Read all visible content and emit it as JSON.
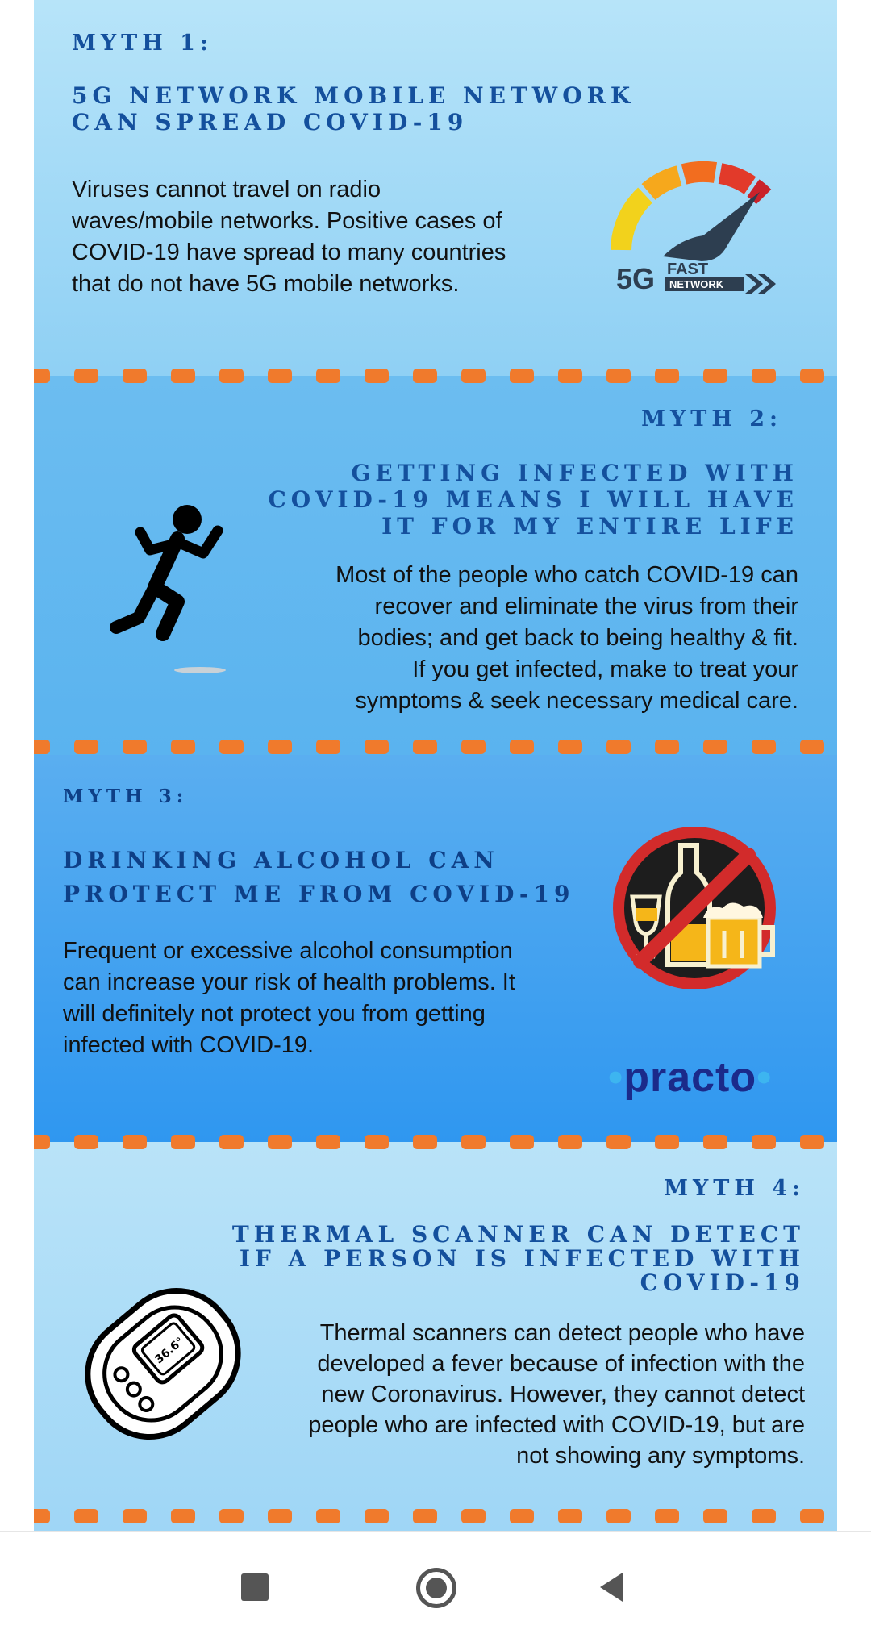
{
  "myths": [
    {
      "label": "MYTH 1:",
      "title_lines": [
        "5G NETWORK MOBILE NETWORK",
        "CAN SPREAD COVID-19"
      ],
      "body_lines": [
        "Viruses cannot travel on radio",
        "waves/mobile networks. Positive cases of",
        "COVID-19  have spread to many countries",
        "that do not have 5G mobile networks."
      ],
      "icon": "5g-speedometer-icon",
      "icon_text": {
        "big": "5G",
        "top": "FAST",
        "bottom": "NETWORK"
      }
    },
    {
      "label": "MYTH 2:",
      "title_lines": [
        "GETTING INFECTED WITH",
        "COVID-19 MEANS I WILL HAVE",
        "IT FOR MY ENTIRE LIFE"
      ],
      "body_lines": [
        "Most of the people who catch COVID-19 can",
        "recover and eliminate the virus from their",
        "bodies; and get back to being healthy & fit.",
        "If you get infected, make to treat your",
        "symptoms & seek necessary medical care."
      ],
      "icon": "running-person-icon"
    },
    {
      "label": "MYTH 3:",
      "title_lines": [
        "DRINKING ALCOHOL CAN",
        "PROTECT ME FROM COVID-19"
      ],
      "body_lines": [
        "Frequent or excessive alcohol consumption",
        "can increase your risk of health problems. It",
        "will definitely not protect you from getting",
        "infected with COVID-19."
      ],
      "icon": "no-alcohol-icon",
      "brand": "practo"
    },
    {
      "label": "MYTH 4:",
      "title_lines": [
        "THERMAL SCANNER CAN DETECT",
        "IF A PERSON IS INFECTED WITH",
        "COVID-19"
      ],
      "body_lines": [
        "Thermal scanners can detect people who have",
        "developed a fever because of infection with the",
        "new Coronavirus. However, they cannot detect",
        "people who are infected with COVID-19, but are",
        "not showing any symptoms."
      ],
      "icon": "thermal-scanner-icon",
      "scanner_reading": "36.6°"
    }
  ],
  "colors": {
    "accent_dash": "#f07a2c",
    "heading": "#14509d",
    "brand": "#1b2a8a"
  },
  "navbar": {
    "buttons": [
      {
        "icon": "recent-apps-icon"
      },
      {
        "icon": "home-icon"
      },
      {
        "icon": "back-icon"
      }
    ]
  }
}
